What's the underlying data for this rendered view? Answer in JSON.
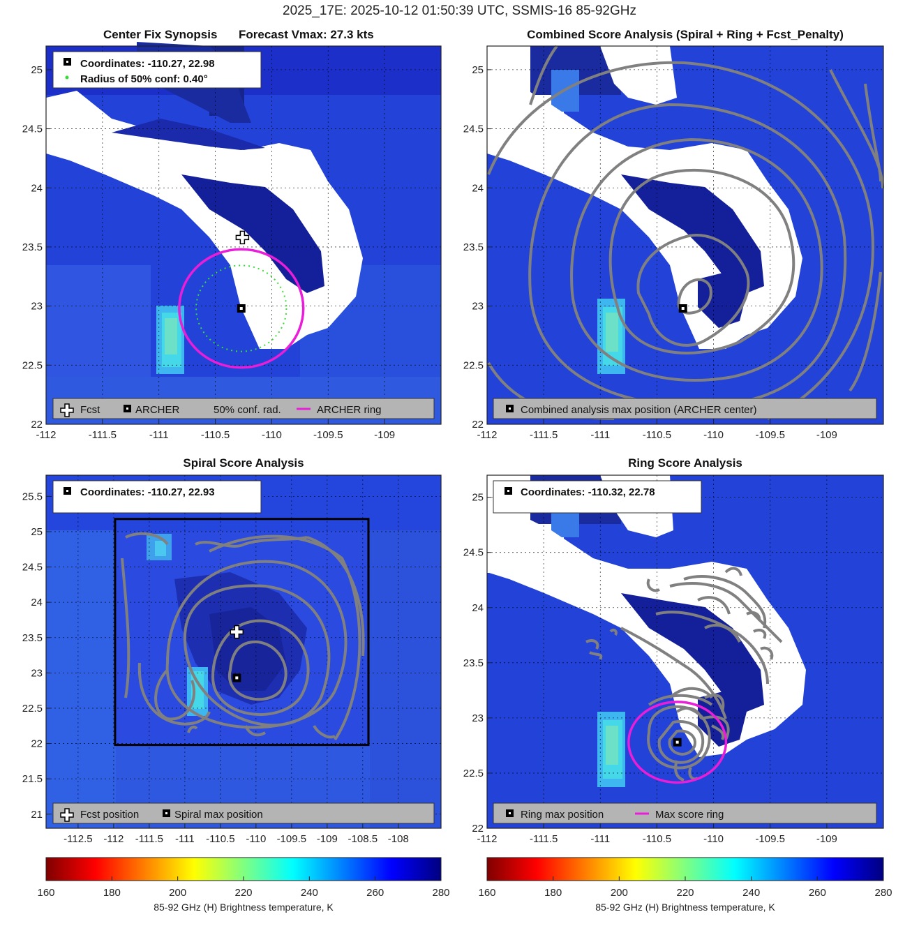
{
  "title": "2025_17E: 2025-10-12 01:50:39 UTC, SSMIS-16 85-92GHz",
  "colors": {
    "ring": "#e81ed8",
    "contour": "#808080",
    "conf": "#33dd33",
    "legend_bg": "#b4b4b4"
  },
  "panels": [
    {
      "id": "synopsis",
      "title_left": "Center Fix Synopsis",
      "title_right": "Forecast Vmax: 27.3 kts",
      "box": {
        "line1": "Coordinates: -110.27, 22.98",
        "line2": "Radius of 50% conf: 0.40°"
      },
      "legend": [
        "Fcst",
        "ARCHER",
        "50% conf. rad.",
        "ARCHER ring"
      ],
      "x_ticks": [
        "-112",
        "-111.5",
        "-111",
        "-110.5",
        "-110",
        "-109.5",
        "-109"
      ],
      "y_ticks": [
        "22",
        "22.5",
        "23",
        "23.5",
        "24",
        "24.5",
        "25"
      ]
    },
    {
      "id": "combined",
      "title": "Combined Score Analysis (Spiral + Ring + Fcst_Penalty)",
      "legend": [
        "Combined analysis max position (ARCHER center)"
      ],
      "x_ticks": [
        "-112",
        "-111.5",
        "-111",
        "-110.5",
        "-110",
        "-109.5",
        "-109"
      ],
      "y_ticks": [
        "22",
        "22.5",
        "23",
        "23.5",
        "24",
        "24.5",
        "25"
      ]
    },
    {
      "id": "spiral",
      "title": "Spiral Score Analysis",
      "box": {
        "line1": "Coordinates: -110.27, 22.93"
      },
      "legend": [
        "Fcst position",
        "Spiral max position"
      ],
      "x_ticks": [
        "-112.5",
        "-112",
        "-111.5",
        "-111",
        "-110.5",
        "-110",
        "-109.5",
        "-109",
        "-108.5",
        "-108"
      ],
      "y_ticks": [
        "21",
        "21.5",
        "22",
        "22.5",
        "23",
        "23.5",
        "24",
        "24.5",
        "25",
        "25.5"
      ]
    },
    {
      "id": "ring",
      "title": "Ring Score Analysis",
      "box": {
        "line1": "Coordinates: -110.32, 22.78"
      },
      "legend": [
        "Ring max position",
        "Max score ring"
      ],
      "x_ticks": [
        "-112",
        "-111.5",
        "-111",
        "-110.5",
        "-110",
        "-109.5",
        "-109"
      ],
      "y_ticks": [
        "22",
        "22.5",
        "23",
        "23.5",
        "24",
        "24.5",
        "25"
      ]
    }
  ],
  "colorbar": {
    "ticks": [
      "160",
      "180",
      "200",
      "220",
      "240",
      "260",
      "280"
    ],
    "label": "85-92 GHz (H) Brightness temperature, K"
  },
  "chart_data": [
    {
      "type": "heatmap",
      "panel": "synopsis",
      "xlim": [
        -112,
        -108.5
      ],
      "ylim": [
        22,
        25.2
      ],
      "markers": {
        "fcst": {
          "lon": -110.26,
          "lat": 23.58
        },
        "archer_center": {
          "lon": -110.27,
          "lat": 22.98
        },
        "archer_ring_radius_deg": 0.55,
        "conf_radius_deg": 0.4
      }
    },
    {
      "type": "heatmap",
      "panel": "combined",
      "xlim": [
        -112,
        -108.5
      ],
      "ylim": [
        22,
        25.2
      ],
      "markers": {
        "combined_max": {
          "lon": -110.27,
          "lat": 22.98
        }
      }
    },
    {
      "type": "heatmap",
      "panel": "spiral",
      "xlim": [
        -112.95,
        -107.4
      ],
      "ylim": [
        20.8,
        25.8
      ],
      "markers": {
        "fcst": {
          "lon": -110.27,
          "lat": 23.58
        },
        "spiral_max": {
          "lon": -110.27,
          "lat": 22.93
        },
        "search_box": {
          "lon": [
            -111.98,
            -108.42
          ],
          "lat": [
            21.98,
            25.18
          ]
        }
      }
    },
    {
      "type": "heatmap",
      "panel": "ring",
      "xlim": [
        -112,
        -108.5
      ],
      "ylim": [
        22,
        25.2
      ],
      "markers": {
        "ring_max": {
          "lon": -110.32,
          "lat": 22.78
        },
        "max_score_ring_radius_deg": 0.43
      }
    }
  ]
}
